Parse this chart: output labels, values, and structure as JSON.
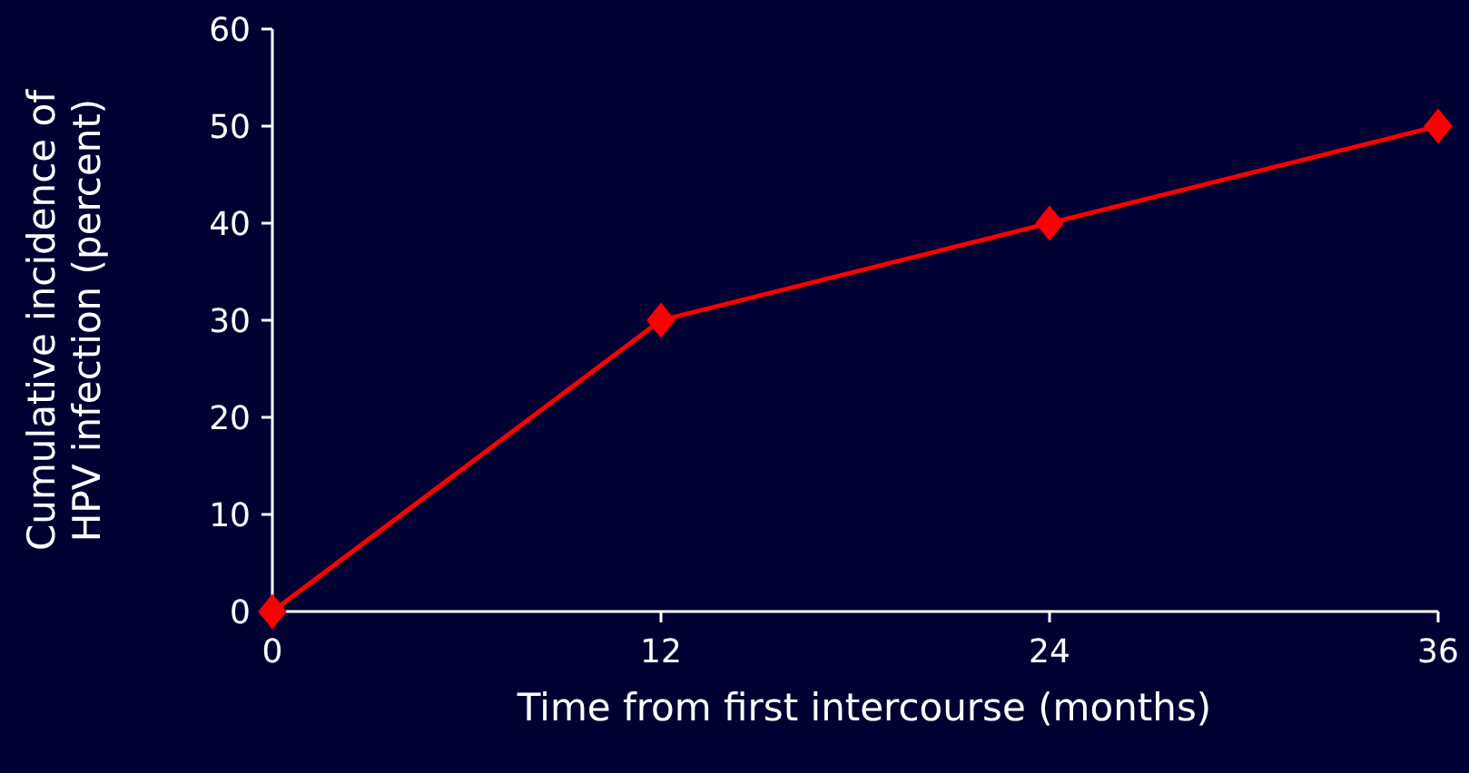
{
  "chart_data": {
    "type": "line",
    "xlabel": "Time from first intercourse (months)",
    "ylabel": "Cumulative incidence of\nHPV infection (percent)",
    "x": [
      0,
      12,
      24,
      36
    ],
    "series": [
      {
        "color": "#ff0000",
        "values": [
          0,
          30,
          40,
          50
        ]
      }
    ],
    "xlim": [
      0,
      36
    ],
    "xticks": [
      0,
      12,
      24,
      36
    ],
    "ylim": [
      0,
      60
    ],
    "yticks": [
      0,
      10,
      20,
      30,
      40,
      50,
      60
    ],
    "grid": false,
    "marker": "diamond",
    "line_style": "solid"
  }
}
